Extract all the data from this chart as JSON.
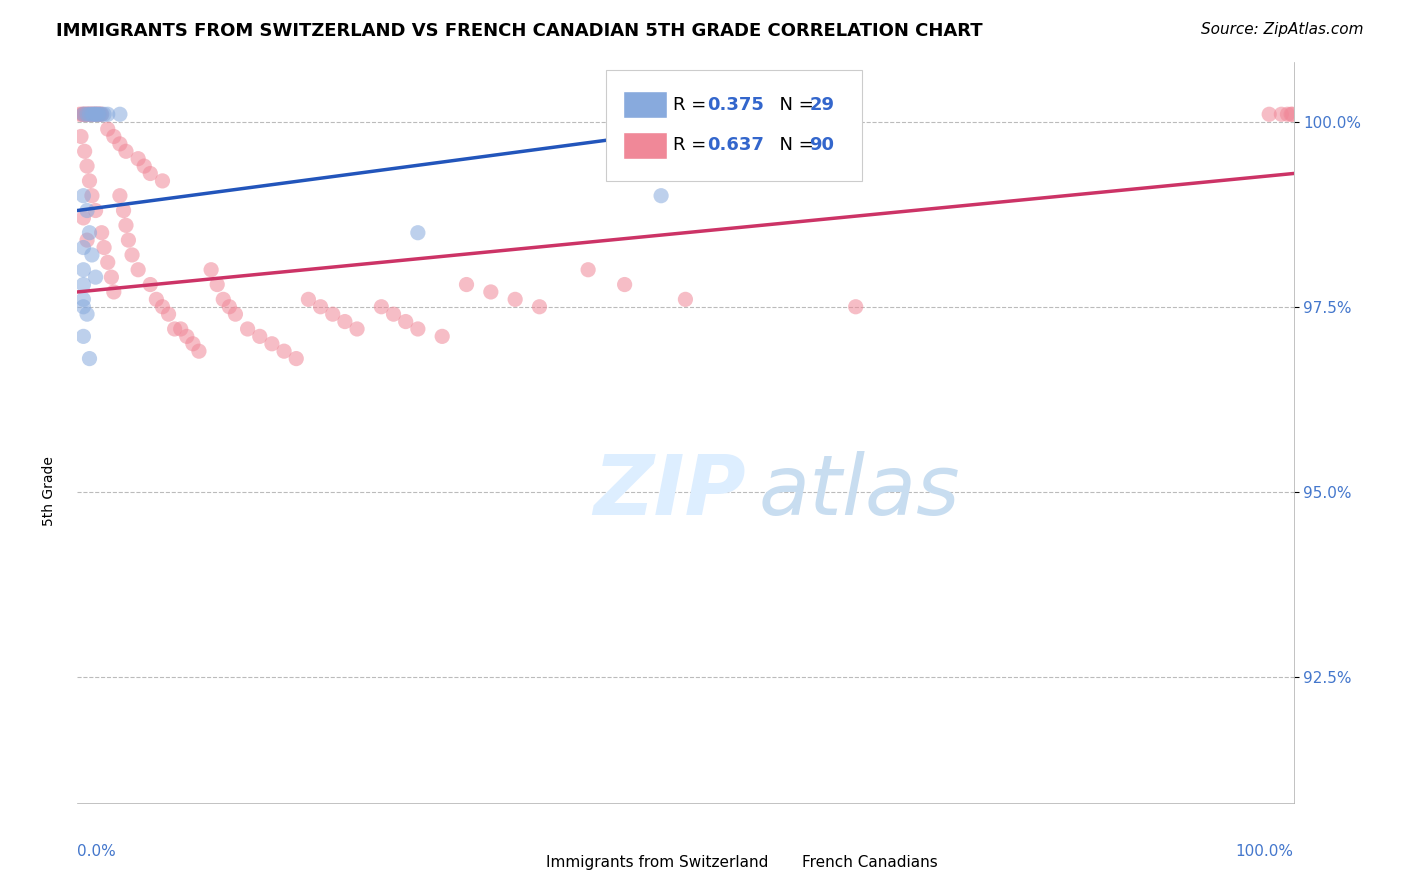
{
  "title": "IMMIGRANTS FROM SWITZERLAND VS FRENCH CANADIAN 5TH GRADE CORRELATION CHART",
  "source": "Source: ZipAtlas.com",
  "ylabel": "5th Grade",
  "ytick_labels": [
    "92.5%",
    "95.0%",
    "97.5%",
    "100.0%"
  ],
  "ytick_values": [
    0.925,
    0.95,
    0.975,
    1.0
  ],
  "xlim": [
    0.0,
    1.0
  ],
  "ylim": [
    0.908,
    1.008
  ],
  "blue_color": "#88aadd",
  "pink_color": "#f08898",
  "blue_line_color": "#2255bb",
  "pink_line_color": "#cc3366",
  "dot_alpha": 0.55,
  "dot_size": 120,
  "background_color": "#ffffff",
  "grid_color": "#bbbbbb",
  "title_fontsize": 13,
  "source_fontsize": 11,
  "ylabel_fontsize": 10,
  "tick_fontsize": 11,
  "watermark_color": "#ddeeff",
  "watermark_fontsize": 60,
  "legend_R1": "0.375",
  "legend_N1": "29",
  "legend_R2": "0.637",
  "legend_N2": "90",
  "legend_label1": "Immigrants from Switzerland",
  "legend_label2": "French Canadians"
}
